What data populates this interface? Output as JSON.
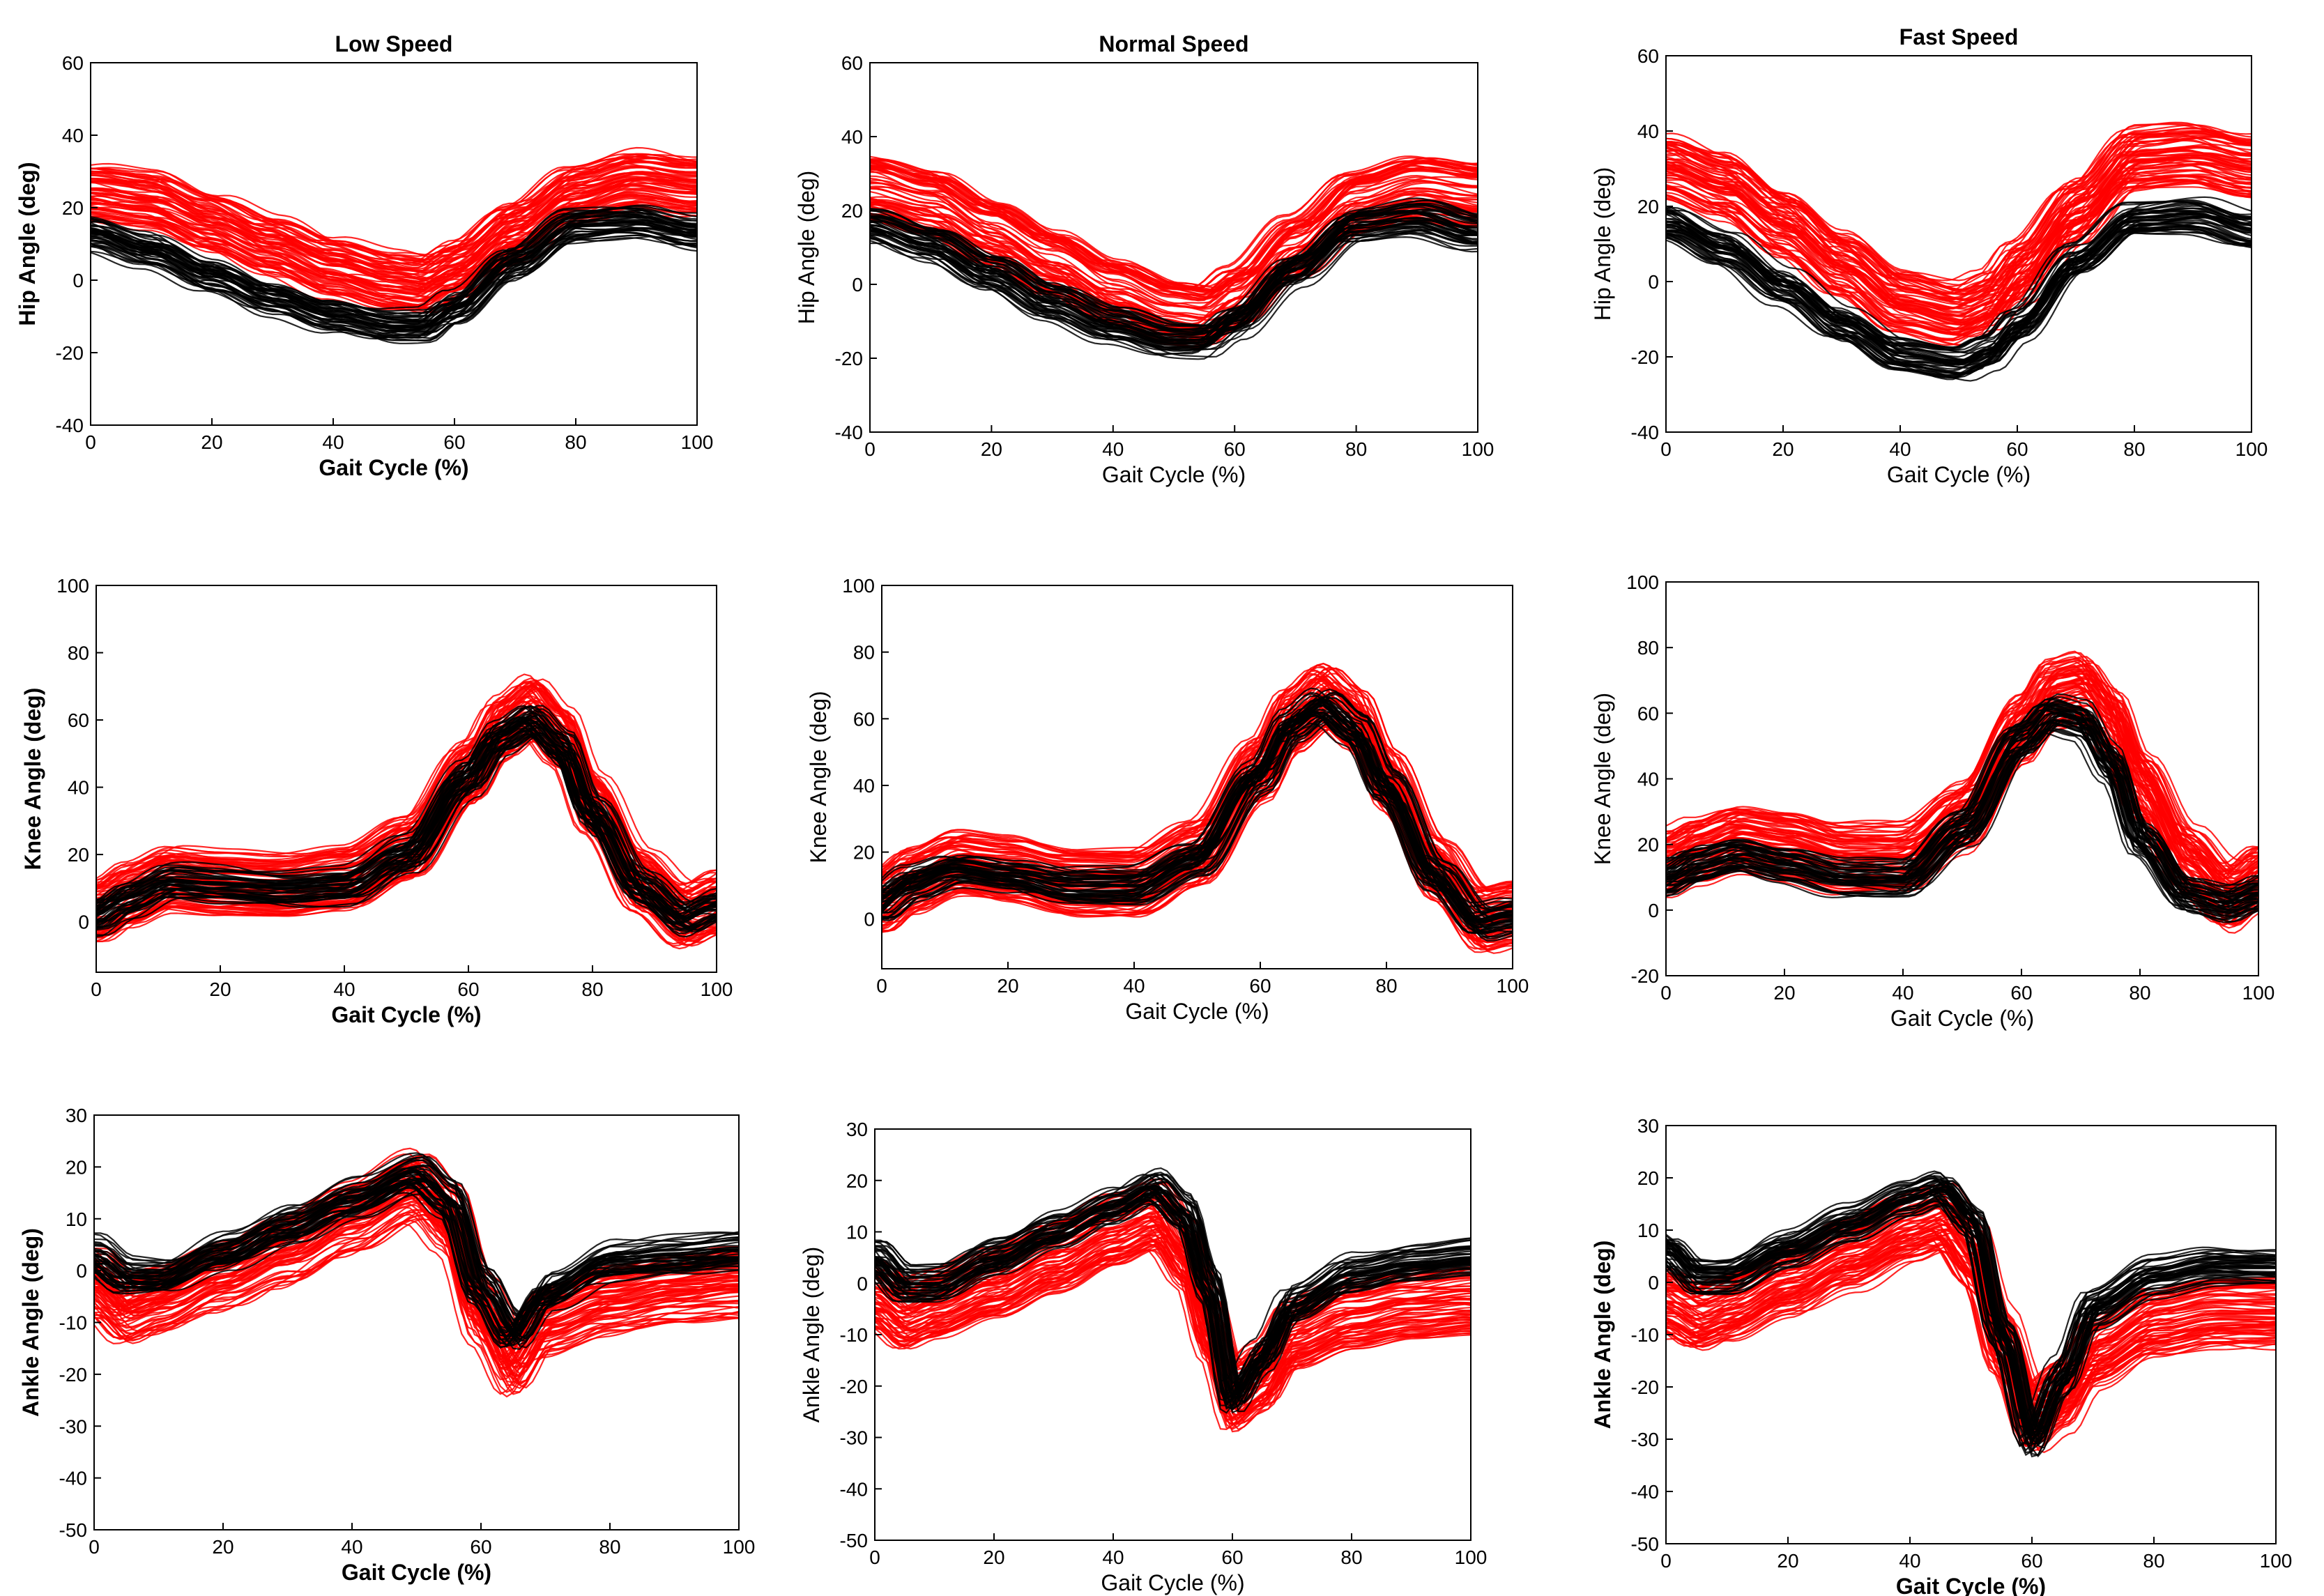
{
  "colors": {
    "group_a": "#ff0000",
    "group_b": "#000000",
    "axis": "#000000"
  },
  "chart_data": [
    {
      "type": "line",
      "title": "Low Speed",
      "xlabel": "Gait Cycle (%)",
      "ylabel": "Hip Angle (deg)",
      "xlim": [
        0,
        100
      ],
      "ylim": [
        -40,
        60
      ],
      "xticks": [
        0,
        20,
        40,
        60,
        80,
        100
      ],
      "yticks": [
        -40,
        -20,
        0,
        20,
        40,
        60
      ],
      "bold_labels": true,
      "grid": false,
      "series": [
        {
          "color": "#ff0000",
          "x": [
            0,
            10,
            20,
            30,
            40,
            50,
            55,
            60,
            70,
            80,
            90,
            100
          ],
          "y": [
            24,
            22,
            16,
            10,
            4,
            0,
            -1,
            3,
            14,
            24,
            28,
            26
          ]
        },
        {
          "color": "#000000",
          "x": [
            0,
            10,
            20,
            30,
            40,
            50,
            55,
            60,
            70,
            80,
            90,
            100
          ],
          "y": [
            13,
            8,
            1,
            -5,
            -10,
            -13,
            -13,
            -8,
            5,
            15,
            16,
            13
          ]
        }
      ]
    },
    {
      "type": "line",
      "title": "Normal Speed",
      "xlabel": "Gait Cycle (%)",
      "ylabel": "Hip Angle (deg)",
      "xlim": [
        0,
        100
      ],
      "ylim": [
        -40,
        60
      ],
      "xticks": [
        0,
        20,
        40,
        60,
        80,
        100
      ],
      "yticks": [
        -40,
        -20,
        0,
        20,
        40,
        60
      ],
      "bold_labels": false,
      "grid": false,
      "series": [
        {
          "color": "#ff0000",
          "x": [
            0,
            10,
            20,
            30,
            40,
            50,
            55,
            60,
            70,
            80,
            90,
            100
          ],
          "y": [
            26,
            22,
            14,
            6,
            -2,
            -8,
            -9,
            -4,
            10,
            22,
            26,
            24
          ]
        },
        {
          "color": "#000000",
          "x": [
            0,
            10,
            20,
            30,
            40,
            50,
            55,
            60,
            70,
            80,
            90,
            100
          ],
          "y": [
            16,
            11,
            3,
            -5,
            -11,
            -15,
            -15,
            -10,
            4,
            16,
            18,
            14
          ]
        }
      ]
    },
    {
      "type": "line",
      "title": "Fast Speed",
      "xlabel": "Gait Cycle (%)",
      "ylabel": "Hip Angle (deg)",
      "xlim": [
        0,
        100
      ],
      "ylim": [
        -40,
        60
      ],
      "xticks": [
        0,
        20,
        40,
        60,
        80,
        100
      ],
      "yticks": [
        -40,
        -20,
        0,
        20,
        40,
        60
      ],
      "bold_labels": false,
      "grid": false,
      "series": [
        {
          "color": "#ff0000",
          "x": [
            0,
            10,
            20,
            30,
            40,
            50,
            55,
            60,
            70,
            80,
            90,
            100
          ],
          "y": [
            30,
            25,
            15,
            4,
            -6,
            -9,
            -6,
            2,
            18,
            32,
            33,
            30
          ]
        },
        {
          "color": "#000000",
          "x": [
            0,
            10,
            20,
            30,
            40,
            50,
            55,
            60,
            70,
            80,
            90,
            100
          ],
          "y": [
            16,
            9,
            -1,
            -11,
            -19,
            -21,
            -18,
            -11,
            6,
            17,
            18,
            14
          ]
        }
      ]
    },
    {
      "type": "line",
      "title": "",
      "xlabel": "Gait Cycle (%)",
      "ylabel": "Knee Angle (deg)",
      "xlim": [
        0,
        100
      ],
      "ylim": [
        -15,
        100
      ],
      "xticks": [
        0,
        20,
        40,
        60,
        80,
        100
      ],
      "yticks": [
        0,
        20,
        40,
        60,
        80,
        100
      ],
      "bold_labels": true,
      "grid": false,
      "series": [
        {
          "color": "#ff0000",
          "x": [
            0,
            5,
            12,
            20,
            30,
            40,
            50,
            60,
            65,
            70,
            75,
            80,
            88,
            95,
            100
          ],
          "y": [
            3,
            8,
            13,
            12,
            11,
            13,
            22,
            45,
            58,
            64,
            55,
            35,
            12,
            2,
            6
          ]
        },
        {
          "color": "#000000",
          "x": [
            0,
            5,
            12,
            20,
            30,
            40,
            50,
            60,
            65,
            70,
            75,
            80,
            88,
            95,
            100
          ],
          "y": [
            2,
            7,
            12,
            11,
            10,
            11,
            20,
            43,
            55,
            60,
            52,
            32,
            10,
            1,
            5
          ]
        }
      ]
    },
    {
      "type": "line",
      "title": "",
      "xlabel": "Gait Cycle (%)",
      "ylabel": "Knee Angle (deg)",
      "xlim": [
        0,
        100
      ],
      "ylim": [
        -15,
        100
      ],
      "xticks": [
        0,
        20,
        40,
        60,
        80,
        100
      ],
      "yticks": [
        0,
        20,
        40,
        60,
        80,
        100
      ],
      "bold_labels": false,
      "grid": false,
      "series": [
        {
          "color": "#ff0000",
          "x": [
            0,
            5,
            12,
            20,
            30,
            40,
            50,
            60,
            65,
            70,
            75,
            80,
            88,
            95,
            100
          ],
          "y": [
            6,
            12,
            17,
            15,
            11,
            11,
            20,
            45,
            60,
            67,
            60,
            42,
            15,
            0,
            2
          ]
        },
        {
          "color": "#000000",
          "x": [
            0,
            5,
            12,
            20,
            30,
            40,
            50,
            60,
            65,
            70,
            75,
            80,
            88,
            95,
            100
          ],
          "y": [
            5,
            11,
            15,
            13,
            10,
            10,
            18,
            43,
            58,
            64,
            57,
            40,
            13,
            -1,
            1
          ]
        }
      ]
    },
    {
      "type": "line",
      "title": "",
      "xlabel": "Gait Cycle (%)",
      "ylabel": "Knee Angle (deg)",
      "xlim": [
        0,
        100
      ],
      "ylim": [
        -20,
        100
      ],
      "xticks": [
        0,
        20,
        40,
        60,
        80,
        100
      ],
      "yticks": [
        -20,
        0,
        20,
        40,
        60,
        80,
        100
      ],
      "bold_labels": false,
      "grid": false,
      "series": [
        {
          "color": "#ff0000",
          "x": [
            0,
            5,
            12,
            20,
            30,
            40,
            50,
            60,
            65,
            70,
            75,
            80,
            88,
            95,
            100
          ],
          "y": [
            14,
            18,
            22,
            20,
            16,
            16,
            28,
            55,
            66,
            68,
            58,
            38,
            15,
            4,
            10
          ]
        },
        {
          "color": "#000000",
          "x": [
            0,
            5,
            12,
            20,
            30,
            40,
            50,
            60,
            65,
            70,
            75,
            80,
            88,
            95,
            100
          ],
          "y": [
            10,
            14,
            17,
            14,
            10,
            10,
            25,
            52,
            60,
            58,
            45,
            22,
            5,
            2,
            5
          ]
        }
      ]
    },
    {
      "type": "line",
      "title": "",
      "xlabel": "Gait Cycle (%)",
      "ylabel": "Ankle Angle (deg)",
      "xlim": [
        0,
        100
      ],
      "ylim": [
        -50,
        30
      ],
      "xticks": [
        0,
        20,
        40,
        60,
        80,
        100
      ],
      "yticks": [
        -50,
        -40,
        -30,
        -20,
        -10,
        0,
        10,
        20,
        30
      ],
      "bold_labels": true,
      "grid": false,
      "series": [
        {
          "color": "#ff0000",
          "x": [
            0,
            5,
            10,
            20,
            30,
            40,
            50,
            55,
            60,
            65,
            70,
            80,
            90,
            100
          ],
          "y": [
            -3,
            -8,
            -6,
            -1,
            4,
            10,
            16,
            10,
            -8,
            -18,
            -10,
            -6,
            -4,
            -3
          ]
        },
        {
          "color": "#000000",
          "x": [
            0,
            5,
            10,
            20,
            30,
            40,
            50,
            55,
            60,
            65,
            70,
            80,
            90,
            100
          ],
          "y": [
            3,
            -1,
            -1,
            4,
            9,
            14,
            19,
            14,
            -3,
            -12,
            -4,
            2,
            3,
            4
          ]
        }
      ]
    },
    {
      "type": "line",
      "title": "",
      "xlabel": "Gait Cycle (%)",
      "ylabel": "Ankle Angle (deg)",
      "xlim": [
        0,
        100
      ],
      "ylim": [
        -50,
        30
      ],
      "xticks": [
        0,
        20,
        40,
        60,
        80,
        100
      ],
      "yticks": [
        -50,
        -40,
        -30,
        -20,
        -10,
        0,
        10,
        20,
        30
      ],
      "bold_labels": false,
      "grid": false,
      "series": [
        {
          "color": "#ff0000",
          "x": [
            0,
            5,
            10,
            20,
            30,
            40,
            47,
            52,
            56,
            60,
            65,
            70,
            80,
            90,
            100
          ],
          "y": [
            -2,
            -6,
            -4,
            0,
            5,
            10,
            13,
            6,
            -8,
            -22,
            -18,
            -10,
            -6,
            -4,
            -3
          ]
        },
        {
          "color": "#000000",
          "x": [
            0,
            5,
            10,
            20,
            30,
            40,
            47,
            52,
            56,
            60,
            65,
            70,
            80,
            90,
            100
          ],
          "y": [
            5,
            0,
            0,
            5,
            10,
            15,
            19,
            14,
            0,
            -22,
            -14,
            -4,
            2,
            4,
            5
          ]
        }
      ]
    },
    {
      "type": "line",
      "title": "",
      "xlabel": "Gait Cycle (%)",
      "ylabel": "Ankle Angle (deg)",
      "xlim": [
        0,
        100
      ],
      "ylim": [
        -50,
        30
      ],
      "xticks": [
        0,
        20,
        40,
        60,
        80,
        100
      ],
      "yticks": [
        -50,
        -40,
        -30,
        -20,
        -10,
        0,
        10,
        20,
        30
      ],
      "bold_labels": true,
      "grid": false,
      "series": [
        {
          "color": "#ff0000",
          "x": [
            0,
            5,
            10,
            20,
            30,
            40,
            45,
            50,
            55,
            60,
            65,
            70,
            80,
            90,
            100
          ],
          "y": [
            -4,
            -7,
            -5,
            0,
            5,
            10,
            12,
            5,
            -12,
            -26,
            -22,
            -14,
            -8,
            -6,
            -6
          ]
        },
        {
          "color": "#000000",
          "x": [
            0,
            5,
            10,
            20,
            30,
            40,
            45,
            50,
            55,
            60,
            65,
            70,
            80,
            90,
            100
          ],
          "y": [
            6,
            1,
            1,
            6,
            11,
            16,
            18,
            12,
            -10,
            -30,
            -18,
            -5,
            1,
            3,
            3
          ]
        }
      ]
    }
  ]
}
